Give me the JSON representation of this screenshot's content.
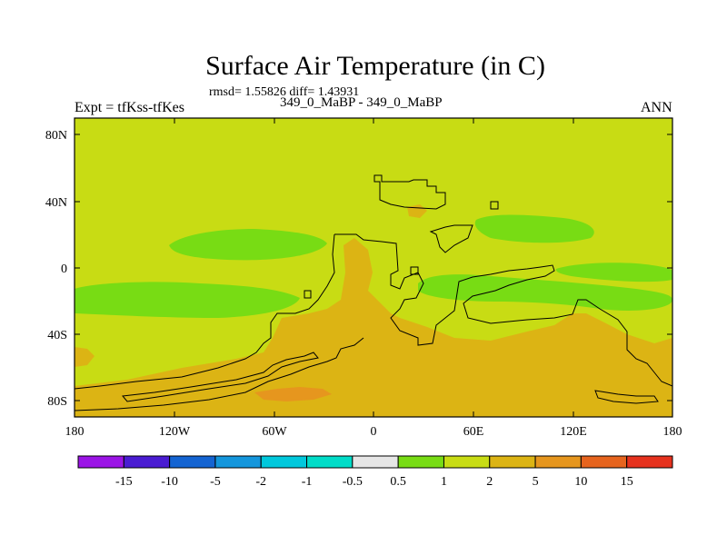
{
  "title": "Surface Air Temperature (in C)",
  "stats": "rmsd= 1.55826 diff= 1.43931",
  "subtitle": "349_0_MaBP - 349_0_MaBP",
  "left_label": "Expt = tfKss-tfKes",
  "right_label": "ANN",
  "map": {
    "projection": "cylindrical equidistant",
    "lon_range": [
      -180,
      180
    ],
    "lat_range": [
      -90,
      90
    ],
    "y_ticks": [
      "80N",
      "40N",
      "0",
      "40S",
      "80S"
    ],
    "x_ticks": [
      "180",
      "120W",
      "60W",
      "0",
      "60E",
      "120E",
      "180"
    ],
    "background_level_color": "#c8dc14"
  },
  "colorbar": {
    "colors": [
      "#9b14e6",
      "#4a1cd2",
      "#1464d2",
      "#1496dc",
      "#00c8dc",
      "#00dcc8",
      "#e6e6e6",
      "#78dc14",
      "#c8dc14",
      "#dcb414",
      "#e6961e",
      "#e6641e",
      "#e6321e"
    ],
    "labels": [
      "-15",
      "-10",
      "-5",
      "-2",
      "-1",
      "-0.5",
      "0.5",
      "1",
      "2",
      "5",
      "10",
      "15"
    ]
  }
}
